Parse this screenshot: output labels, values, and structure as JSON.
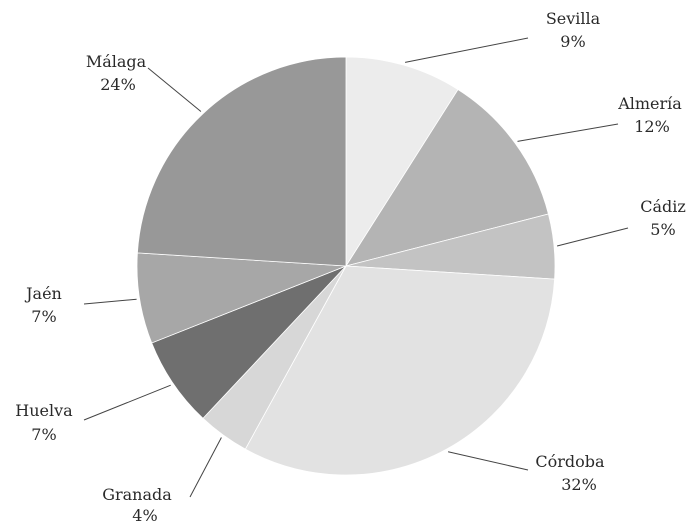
{
  "chart_data": {
    "type": "pie",
    "title": "",
    "slices": [
      {
        "label": "Sevilla",
        "value": 9,
        "pct_label": "9%",
        "color": "#ececec"
      },
      {
        "label": "Almería",
        "value": 12,
        "pct_label": "12%",
        "color": "#b4b4b4"
      },
      {
        "label": "Cádiz",
        "value": 5,
        "pct_label": "5%",
        "color": "#c3c3c3"
      },
      {
        "label": "Córdoba",
        "value": 32,
        "pct_label": "32%",
        "color": "#e2e2e2"
      },
      {
        "label": "Granada",
        "value": 4,
        "pct_label": "4%",
        "color": "#d7d7d7"
      },
      {
        "label": "Huelva",
        "value": 7,
        "pct_label": "7%",
        "color": "#6f6f6f"
      },
      {
        "label": "Jaén",
        "value": 7,
        "pct_label": "7%",
        "color": "#a7a7a7"
      },
      {
        "label": "Málaga",
        "value": 24,
        "pct_label": "24%",
        "color": "#989898"
      }
    ]
  }
}
